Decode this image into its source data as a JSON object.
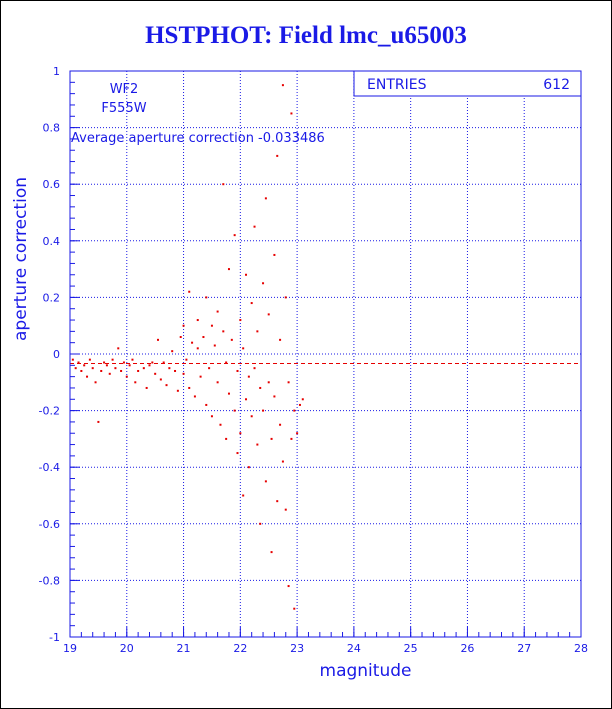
{
  "chart_data": {
    "type": "scatter",
    "title": "HSTPHOT: Field lmc_u65003",
    "xlabel": "magnitude",
    "ylabel": "aperture correction",
    "xlim": [
      19,
      28
    ],
    "ylim": [
      -1,
      1
    ],
    "x_ticks": [
      19,
      20,
      21,
      22,
      23,
      24,
      25,
      26,
      27,
      28
    ],
    "y_ticks": [
      -1,
      -0.8,
      -0.6,
      -0.4,
      -0.2,
      0,
      0.2,
      0.4,
      0.6,
      0.8,
      1
    ],
    "x_tick_labels": [
      "19",
      "20",
      "21",
      "22",
      "23",
      "24",
      "25",
      "26",
      "27",
      "28"
    ],
    "y_tick_labels": [
      "-1",
      "-0.8",
      "-0.6",
      "-0.4",
      "-0.2",
      "0",
      "0.2",
      "0.4",
      "0.6",
      "0.8",
      "1"
    ],
    "grid": true,
    "annotations": {
      "chip": "WF2",
      "filter": "F555W",
      "average_text": "Average aperture correction -0.033486"
    },
    "average_value": -0.033486,
    "stats_box": {
      "label": "ENTRIES",
      "value": "612"
    },
    "point_color": "#e60000",
    "axis_color": "#1a1ae6",
    "points": [
      [
        19.05,
        -0.02
      ],
      [
        19.1,
        -0.05
      ],
      [
        19.15,
        -0.03
      ],
      [
        19.2,
        -0.06
      ],
      [
        19.25,
        -0.04
      ],
      [
        19.3,
        -0.08
      ],
      [
        19.35,
        -0.02
      ],
      [
        19.4,
        -0.05
      ],
      [
        19.45,
        -0.1
      ],
      [
        19.5,
        -0.24
      ],
      [
        19.55,
        -0.06
      ],
      [
        19.6,
        -0.03
      ],
      [
        19.65,
        -0.04
      ],
      [
        19.7,
        -0.07
      ],
      [
        19.75,
        -0.02
      ],
      [
        19.8,
        -0.05
      ],
      [
        19.85,
        0.02
      ],
      [
        19.9,
        -0.06
      ],
      [
        19.95,
        -0.03
      ],
      [
        20.0,
        -0.08
      ],
      [
        20.05,
        -0.04
      ],
      [
        20.1,
        -0.02
      ],
      [
        20.15,
        -0.1
      ],
      [
        20.2,
        -0.06
      ],
      [
        20.3,
        -0.05
      ],
      [
        20.35,
        -0.12
      ],
      [
        20.4,
        -0.04
      ],
      [
        20.45,
        -0.03
      ],
      [
        20.5,
        -0.07
      ],
      [
        20.55,
        0.05
      ],
      [
        20.6,
        -0.09
      ],
      [
        20.65,
        -0.03
      ],
      [
        20.7,
        -0.11
      ],
      [
        20.75,
        -0.05
      ],
      [
        20.8,
        0.01
      ],
      [
        20.85,
        -0.06
      ],
      [
        20.9,
        -0.13
      ],
      [
        20.95,
        0.06
      ],
      [
        21.0,
        -0.07
      ],
      [
        21.0,
        0.1
      ],
      [
        21.05,
        -0.02
      ],
      [
        21.1,
        -0.12
      ],
      [
        21.1,
        0.22
      ],
      [
        21.15,
        0.04
      ],
      [
        21.2,
        -0.15
      ],
      [
        21.25,
        0.02
      ],
      [
        21.25,
        0.12
      ],
      [
        21.3,
        -0.08
      ],
      [
        21.35,
        0.06
      ],
      [
        21.4,
        -0.18
      ],
      [
        21.4,
        0.2
      ],
      [
        21.45,
        -0.05
      ],
      [
        21.5,
        0.1
      ],
      [
        21.5,
        -0.22
      ],
      [
        21.55,
        0.03
      ],
      [
        21.6,
        -0.1
      ],
      [
        21.6,
        0.15
      ],
      [
        21.65,
        -0.25
      ],
      [
        21.7,
        0.08
      ],
      [
        21.7,
        0.6
      ],
      [
        21.75,
        -0.03
      ],
      [
        21.75,
        -0.3
      ],
      [
        21.8,
        0.3
      ],
      [
        21.8,
        -0.14
      ],
      [
        21.85,
        0.05
      ],
      [
        21.9,
        -0.2
      ],
      [
        21.9,
        0.42
      ],
      [
        21.95,
        -0.06
      ],
      [
        21.95,
        -0.35
      ],
      [
        22.0,
        0.12
      ],
      [
        22.0,
        -0.28
      ],
      [
        22.05,
        -0.5
      ],
      [
        22.05,
        0.02
      ],
      [
        22.1,
        -0.16
      ],
      [
        22.1,
        0.28
      ],
      [
        22.15,
        -0.08
      ],
      [
        22.15,
        -0.4
      ],
      [
        22.2,
        0.18
      ],
      [
        22.2,
        -0.22
      ],
      [
        22.25,
        0.45
      ],
      [
        22.25,
        -0.05
      ],
      [
        22.3,
        -0.32
      ],
      [
        22.3,
        0.08
      ],
      [
        22.35,
        -0.12
      ],
      [
        22.35,
        -0.6
      ],
      [
        22.4,
        0.25
      ],
      [
        22.4,
        -0.2
      ],
      [
        22.45,
        -0.45
      ],
      [
        22.45,
        0.55
      ],
      [
        22.5,
        -0.1
      ],
      [
        22.5,
        0.14
      ],
      [
        22.55,
        -0.3
      ],
      [
        22.55,
        -0.7
      ],
      [
        22.6,
        0.35
      ],
      [
        22.6,
        -0.15
      ],
      [
        22.65,
        -0.52
      ],
      [
        22.65,
        0.7
      ],
      [
        22.7,
        -0.25
      ],
      [
        22.7,
        0.05
      ],
      [
        22.75,
        -0.38
      ],
      [
        22.75,
        0.95
      ],
      [
        22.8,
        -0.55
      ],
      [
        22.8,
        0.2
      ],
      [
        22.85,
        -0.1
      ],
      [
        22.85,
        -0.82
      ],
      [
        22.9,
        0.85
      ],
      [
        22.9,
        -0.3
      ],
      [
        22.95,
        -0.2
      ],
      [
        22.95,
        -0.9
      ],
      [
        23.0,
        -0.28
      ],
      [
        23.05,
        -0.18
      ],
      [
        23.1,
        -0.16
      ]
    ]
  }
}
